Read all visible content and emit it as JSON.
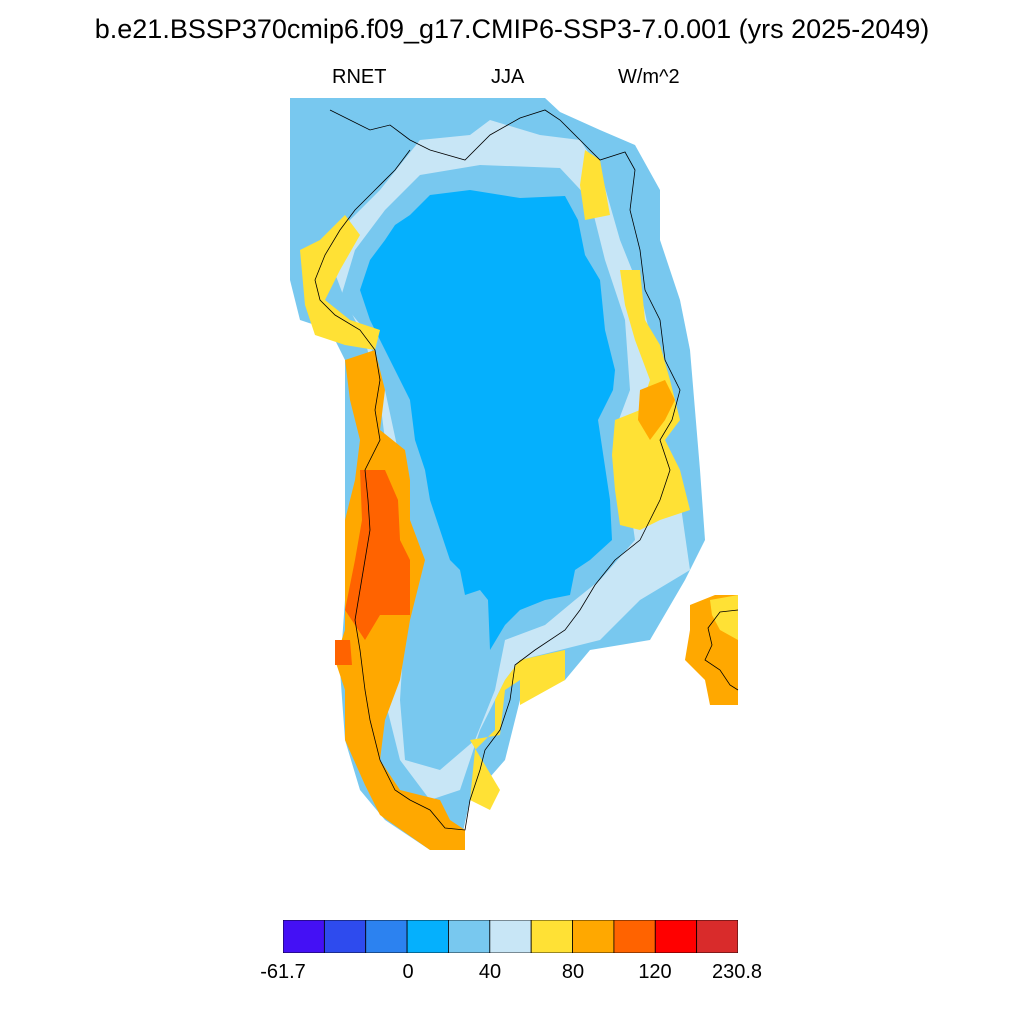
{
  "title": "b.e21.BSSP370cmip6.f09_g17.CMIP6-SSP3-7.0.001 (yrs 2025-2049)",
  "variable": "RNET",
  "season": "JJA",
  "units": "W/m^2",
  "colorbar": {
    "colors": [
      "#4410f5",
      "#2e4bee",
      "#2c82f0",
      "#05b0fd",
      "#78c8ef",
      "#c8e6f6",
      "#ffe135",
      "#ffa800",
      "#ff6300",
      "#ff0000",
      "#d92b2b"
    ],
    "tick_labels": [
      "-61.7",
      "0",
      "40",
      "80",
      "120",
      "230.8"
    ]
  },
  "colors": {
    "ocean": "#ffffff",
    "coast": "#000000"
  }
}
